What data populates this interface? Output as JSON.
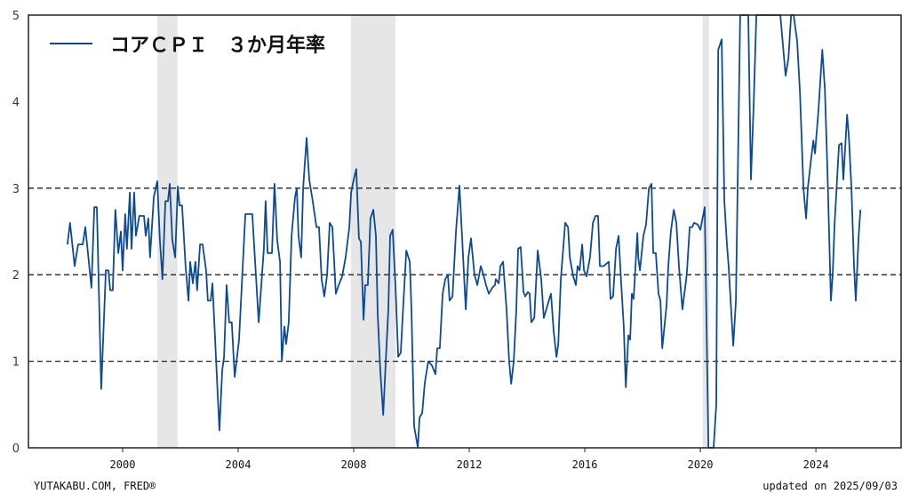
{
  "chart_data": {
    "type": "line",
    "title": "",
    "xlabel": "",
    "ylabel": "",
    "xlim": [
      1996.74,
      2026.95
    ],
    "ylim": [
      0,
      5
    ],
    "x_ticks": [
      2000,
      2004,
      2008,
      2012,
      2016,
      2020,
      2024
    ],
    "y_ticks": [
      0,
      1,
      2,
      3,
      4,
      5
    ],
    "gridlines": {
      "y": [
        1,
        2,
        3
      ],
      "style": "dashed"
    },
    "legend": {
      "placement": "top-left"
    },
    "recessions": [
      [
        2001.2,
        2001.9
      ],
      [
        2007.9,
        2009.45
      ],
      [
        2020.08,
        2020.3
      ]
    ],
    "series": [
      {
        "name": "コアＣＰＩ　３か月年率",
        "color": "#0d4a96",
        "points": [
          [
            1998.09,
            2.35
          ],
          [
            1998.18,
            2.6
          ],
          [
            1998.34,
            2.1
          ],
          [
            1998.46,
            2.35
          ],
          [
            1998.62,
            2.35
          ],
          [
            1998.71,
            2.55
          ],
          [
            1998.92,
            1.85
          ],
          [
            1999.02,
            2.78
          ],
          [
            1999.11,
            2.78
          ],
          [
            1999.26,
            0.68
          ],
          [
            1999.42,
            2.05
          ],
          [
            1999.51,
            2.05
          ],
          [
            1999.57,
            1.82
          ],
          [
            1999.66,
            1.82
          ],
          [
            1999.75,
            2.75
          ],
          [
            1999.85,
            2.25
          ],
          [
            1999.94,
            2.5
          ],
          [
            2000.0,
            2.05
          ],
          [
            2000.09,
            2.7
          ],
          [
            2000.15,
            2.3
          ],
          [
            2000.25,
            2.95
          ],
          [
            2000.31,
            2.3
          ],
          [
            2000.4,
            2.95
          ],
          [
            2000.46,
            2.45
          ],
          [
            2000.58,
            2.68
          ],
          [
            2000.74,
            2.68
          ],
          [
            2000.8,
            2.45
          ],
          [
            2000.89,
            2.65
          ],
          [
            2000.95,
            2.2
          ],
          [
            2001.08,
            2.9
          ],
          [
            2001.2,
            3.08
          ],
          [
            2001.29,
            2.4
          ],
          [
            2001.38,
            1.95
          ],
          [
            2001.48,
            2.85
          ],
          [
            2001.57,
            2.85
          ],
          [
            2001.63,
            3.05
          ],
          [
            2001.72,
            2.4
          ],
          [
            2001.82,
            2.2
          ],
          [
            2001.91,
            3.02
          ],
          [
            2001.97,
            2.8
          ],
          [
            2002.06,
            2.8
          ],
          [
            2002.18,
            2.1
          ],
          [
            2002.28,
            1.7
          ],
          [
            2002.34,
            2.15
          ],
          [
            2002.43,
            1.9
          ],
          [
            2002.52,
            2.15
          ],
          [
            2002.58,
            1.82
          ],
          [
            2002.68,
            2.35
          ],
          [
            2002.77,
            2.35
          ],
          [
            2002.89,
            2.05
          ],
          [
            2002.95,
            1.7
          ],
          [
            2003.05,
            1.7
          ],
          [
            2003.11,
            1.9
          ],
          [
            2003.26,
            0.85
          ],
          [
            2003.35,
            0.2
          ],
          [
            2003.45,
            0.9
          ],
          [
            2003.51,
            1.05
          ],
          [
            2003.6,
            1.88
          ],
          [
            2003.69,
            1.45
          ],
          [
            2003.78,
            1.45
          ],
          [
            2003.88,
            0.82
          ],
          [
            2004.03,
            1.25
          ],
          [
            2004.25,
            2.7
          ],
          [
            2004.49,
            2.7
          ],
          [
            2004.71,
            1.45
          ],
          [
            2004.89,
            2.3
          ],
          [
            2004.95,
            2.85
          ],
          [
            2005.02,
            2.25
          ],
          [
            2005.17,
            2.25
          ],
          [
            2005.26,
            3.05
          ],
          [
            2005.35,
            2.4
          ],
          [
            2005.45,
            2.15
          ],
          [
            2005.51,
            1.0
          ],
          [
            2005.6,
            1.4
          ],
          [
            2005.66,
            1.2
          ],
          [
            2005.75,
            1.45
          ],
          [
            2005.85,
            2.45
          ],
          [
            2005.97,
            2.9
          ],
          [
            2006.03,
            3.0
          ],
          [
            2006.09,
            2.45
          ],
          [
            2006.18,
            2.2
          ],
          [
            2006.25,
            3.0
          ],
          [
            2006.37,
            3.58
          ],
          [
            2006.46,
            3.1
          ],
          [
            2006.58,
            2.85
          ],
          [
            2006.71,
            2.55
          ],
          [
            2006.8,
            2.55
          ],
          [
            2006.89,
            1.95
          ],
          [
            2006.98,
            1.75
          ],
          [
            2007.08,
            2.0
          ],
          [
            2007.17,
            2.6
          ],
          [
            2007.26,
            2.55
          ],
          [
            2007.38,
            1.78
          ],
          [
            2007.48,
            1.88
          ],
          [
            2007.6,
            1.98
          ],
          [
            2007.72,
            2.2
          ],
          [
            2007.85,
            2.55
          ],
          [
            2007.91,
            2.95
          ],
          [
            2008.0,
            3.1
          ],
          [
            2008.09,
            3.22
          ],
          [
            2008.18,
            2.42
          ],
          [
            2008.25,
            2.38
          ],
          [
            2008.34,
            1.48
          ],
          [
            2008.4,
            1.88
          ],
          [
            2008.49,
            1.88
          ],
          [
            2008.58,
            2.65
          ],
          [
            2008.68,
            2.75
          ],
          [
            2008.77,
            2.45
          ],
          [
            2008.83,
            1.55
          ],
          [
            2008.92,
            0.9
          ],
          [
            2009.02,
            0.38
          ],
          [
            2009.11,
            1.0
          ],
          [
            2009.2,
            1.6
          ],
          [
            2009.26,
            2.45
          ],
          [
            2009.35,
            2.52
          ],
          [
            2009.45,
            1.85
          ],
          [
            2009.54,
            1.05
          ],
          [
            2009.63,
            1.1
          ],
          [
            2009.69,
            1.5
          ],
          [
            2009.82,
            2.28
          ],
          [
            2009.94,
            2.15
          ],
          [
            2010.0,
            1.6
          ],
          [
            2010.09,
            0.25
          ],
          [
            2010.22,
            -0.05
          ],
          [
            2010.28,
            0.35
          ],
          [
            2010.37,
            0.4
          ],
          [
            2010.46,
            0.75
          ],
          [
            2010.58,
            1.0
          ],
          [
            2010.71,
            0.95
          ],
          [
            2010.83,
            0.85
          ],
          [
            2010.89,
            1.15
          ],
          [
            2010.98,
            1.15
          ],
          [
            2011.08,
            1.78
          ],
          [
            2011.17,
            1.95
          ],
          [
            2011.26,
            2.0
          ],
          [
            2011.32,
            1.7
          ],
          [
            2011.42,
            1.75
          ],
          [
            2011.54,
            2.5
          ],
          [
            2011.66,
            3.03
          ],
          [
            2011.75,
            2.45
          ],
          [
            2011.88,
            1.6
          ],
          [
            2011.97,
            2.2
          ],
          [
            2012.06,
            2.42
          ],
          [
            2012.18,
            2.0
          ],
          [
            2012.28,
            1.88
          ],
          [
            2012.4,
            2.1
          ],
          [
            2012.49,
            2.0
          ],
          [
            2012.58,
            1.88
          ],
          [
            2012.68,
            1.78
          ],
          [
            2012.8,
            1.85
          ],
          [
            2012.89,
            1.88
          ],
          [
            2012.92,
            1.95
          ],
          [
            2013.02,
            1.9
          ],
          [
            2013.08,
            2.1
          ],
          [
            2013.17,
            2.15
          ],
          [
            2013.29,
            1.6
          ],
          [
            2013.38,
            1.0
          ],
          [
            2013.45,
            0.74
          ],
          [
            2013.54,
            1.0
          ],
          [
            2013.63,
            1.6
          ],
          [
            2013.69,
            2.3
          ],
          [
            2013.78,
            2.32
          ],
          [
            2013.88,
            1.8
          ],
          [
            2013.94,
            1.75
          ],
          [
            2014.03,
            1.8
          ],
          [
            2014.09,
            1.78
          ],
          [
            2014.15,
            1.45
          ],
          [
            2014.25,
            1.5
          ],
          [
            2014.37,
            2.28
          ],
          [
            2014.49,
            1.95
          ],
          [
            2014.58,
            1.5
          ],
          [
            2014.65,
            1.58
          ],
          [
            2014.77,
            1.72
          ],
          [
            2014.83,
            1.78
          ],
          [
            2014.92,
            1.35
          ],
          [
            2015.02,
            1.05
          ],
          [
            2015.08,
            1.2
          ],
          [
            2015.17,
            1.95
          ],
          [
            2015.32,
            2.6
          ],
          [
            2015.42,
            2.55
          ],
          [
            2015.48,
            2.2
          ],
          [
            2015.6,
            1.98
          ],
          [
            2015.69,
            1.88
          ],
          [
            2015.75,
            2.1
          ],
          [
            2015.82,
            2.05
          ],
          [
            2015.91,
            2.35
          ],
          [
            2015.97,
            2.05
          ],
          [
            2016.06,
            1.98
          ],
          [
            2016.18,
            2.2
          ],
          [
            2016.28,
            2.6
          ],
          [
            2016.37,
            2.68
          ],
          [
            2016.46,
            2.68
          ],
          [
            2016.52,
            2.1
          ],
          [
            2016.65,
            2.1
          ],
          [
            2016.83,
            2.15
          ],
          [
            2016.89,
            1.72
          ],
          [
            2016.98,
            1.75
          ],
          [
            2017.08,
            2.3
          ],
          [
            2017.17,
            2.45
          ],
          [
            2017.26,
            1.9
          ],
          [
            2017.35,
            1.4
          ],
          [
            2017.42,
            0.7
          ],
          [
            2017.51,
            1.3
          ],
          [
            2017.57,
            1.25
          ],
          [
            2017.63,
            1.78
          ],
          [
            2017.69,
            1.72
          ],
          [
            2017.82,
            2.48
          ],
          [
            2017.85,
            2.2
          ],
          [
            2017.91,
            2.05
          ],
          [
            2018.03,
            2.45
          ],
          [
            2018.12,
            2.58
          ],
          [
            2018.22,
            3.0
          ],
          [
            2018.31,
            3.05
          ],
          [
            2018.37,
            2.25
          ],
          [
            2018.46,
            2.25
          ],
          [
            2018.55,
            1.78
          ],
          [
            2018.62,
            1.7
          ],
          [
            2018.68,
            1.15
          ],
          [
            2018.83,
            1.65
          ],
          [
            2018.89,
            2.1
          ],
          [
            2018.98,
            2.5
          ],
          [
            2019.08,
            2.75
          ],
          [
            2019.17,
            2.6
          ],
          [
            2019.26,
            2.1
          ],
          [
            2019.38,
            1.6
          ],
          [
            2019.51,
            1.95
          ],
          [
            2019.54,
            2.05
          ],
          [
            2019.63,
            2.55
          ],
          [
            2019.72,
            2.55
          ],
          [
            2019.78,
            2.6
          ],
          [
            2019.91,
            2.58
          ],
          [
            2020.0,
            2.52
          ],
          [
            2020.15,
            2.78
          ],
          [
            2020.28,
            -1.0
          ],
          [
            2020.46,
            -1.0
          ],
          [
            2020.55,
            0.5
          ],
          [
            2020.62,
            4.6
          ],
          [
            2020.74,
            4.72
          ],
          [
            2020.83,
            2.85
          ],
          [
            2020.92,
            2.35
          ],
          [
            2020.98,
            2.1
          ],
          [
            2021.14,
            1.18
          ],
          [
            2021.23,
            1.7
          ],
          [
            2021.29,
            3.0
          ],
          [
            2021.38,
            5.8
          ],
          [
            2021.66,
            6.0
          ],
          [
            2021.75,
            3.1
          ],
          [
            2021.85,
            4.0
          ],
          [
            2021.94,
            6.0
          ],
          [
            2022.77,
            6.0
          ],
          [
            2022.95,
            4.3
          ],
          [
            2023.05,
            4.5
          ],
          [
            2023.14,
            5.3
          ],
          [
            2023.23,
            5.05
          ],
          [
            2023.35,
            4.7
          ],
          [
            2023.45,
            4.1
          ],
          [
            2023.57,
            3.0
          ],
          [
            2023.66,
            2.65
          ],
          [
            2023.72,
            3.0
          ],
          [
            2023.82,
            3.3
          ],
          [
            2023.91,
            3.55
          ],
          [
            2023.97,
            3.4
          ],
          [
            2024.09,
            3.9
          ],
          [
            2024.22,
            4.6
          ],
          [
            2024.31,
            4.15
          ],
          [
            2024.4,
            3.2
          ],
          [
            2024.52,
            1.7
          ],
          [
            2024.58,
            2.0
          ],
          [
            2024.65,
            2.6
          ],
          [
            2024.74,
            3.15
          ],
          [
            2024.8,
            3.5
          ],
          [
            2024.89,
            3.52
          ],
          [
            2024.95,
            3.1
          ],
          [
            2025.08,
            3.85
          ],
          [
            2025.14,
            3.6
          ],
          [
            2025.23,
            3.0
          ],
          [
            2025.32,
            2.1
          ],
          [
            2025.38,
            1.7
          ],
          [
            2025.48,
            2.45
          ],
          [
            2025.54,
            2.75
          ]
        ]
      }
    ]
  },
  "footer": {
    "source": "YUTAKABU.COM, FRED®",
    "updated": "updated on 2025/09/03"
  }
}
